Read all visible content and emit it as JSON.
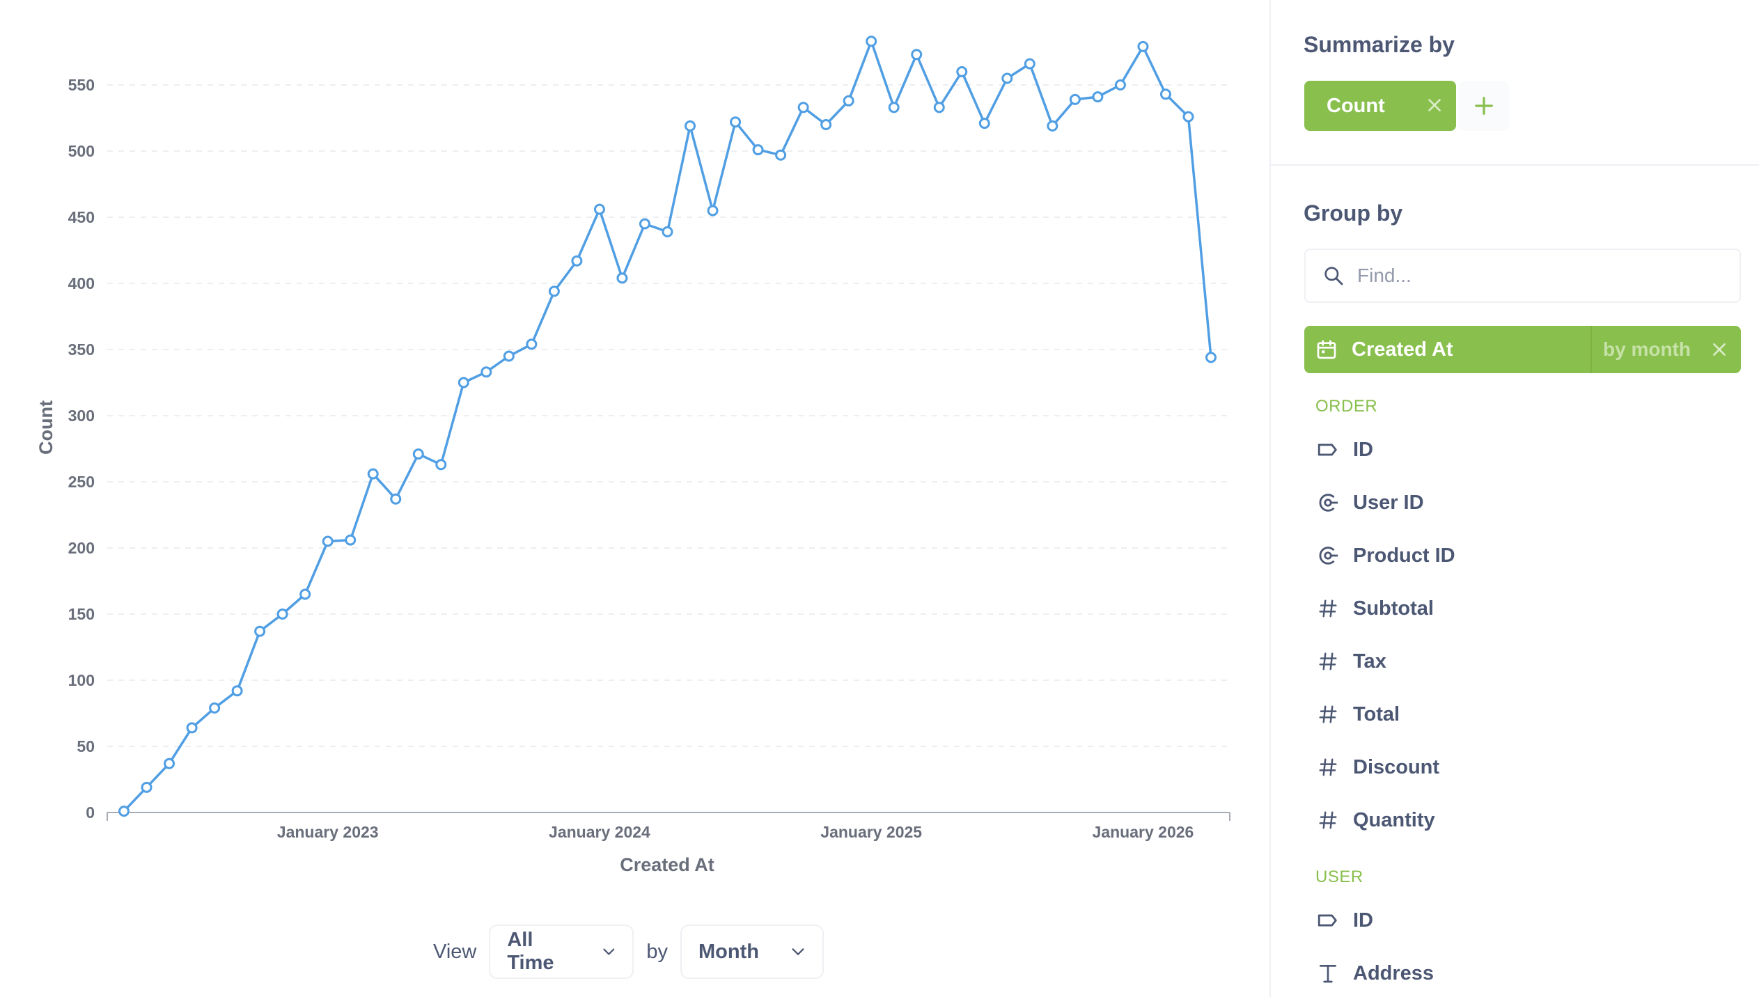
{
  "chart_data": {
    "type": "line",
    "xlabel": "Created At",
    "ylabel": "Count",
    "ylim": [
      0,
      580
    ],
    "yticks": [
      0,
      50,
      100,
      150,
      200,
      250,
      300,
      350,
      400,
      450,
      500,
      550
    ],
    "x_tick_labels": [
      "January 2023",
      "January 2024",
      "January 2025",
      "January 2026"
    ],
    "x_tick_dates": [
      "2023-01",
      "2024-01",
      "2025-01",
      "2026-01"
    ],
    "grid": true,
    "color": "#509ee3",
    "series": [
      {
        "x": [
          "2022-04",
          "2022-05",
          "2022-06",
          "2022-07",
          "2022-08",
          "2022-09",
          "2022-10",
          "2022-11",
          "2022-12",
          "2023-01",
          "2023-02",
          "2023-03",
          "2023-04",
          "2023-05",
          "2023-06",
          "2023-07",
          "2023-08",
          "2023-09",
          "2023-10",
          "2023-11",
          "2023-12",
          "2024-01",
          "2024-02",
          "2024-03",
          "2024-04",
          "2024-05",
          "2024-06",
          "2024-07",
          "2024-08",
          "2024-09",
          "2024-10",
          "2024-11",
          "2024-12",
          "2025-01",
          "2025-02",
          "2025-03",
          "2025-04",
          "2025-05",
          "2025-06",
          "2025-07",
          "2025-08",
          "2025-09",
          "2025-10",
          "2025-11",
          "2025-12",
          "2026-01",
          "2026-02",
          "2026-03",
          "2026-04"
        ],
        "values": [
          1,
          19,
          37,
          64,
          79,
          92,
          137,
          150,
          165,
          205,
          206,
          256,
          237,
          271,
          263,
          325,
          333,
          345,
          354,
          394,
          417,
          456,
          404,
          445,
          439,
          519,
          455,
          522,
          501,
          497,
          533,
          520,
          538,
          583,
          533,
          573,
          533,
          560,
          521,
          555,
          566,
          519,
          539,
          541,
          550,
          579,
          543,
          526,
          344
        ]
      }
    ]
  },
  "view": {
    "view_label": "View",
    "time_value": "All Time",
    "by_label": "by",
    "unit_value": "Month"
  },
  "sidebar": {
    "summarize_title": "Summarize by",
    "metric": "Count",
    "group_title": "Group by",
    "find_placeholder": "Find...",
    "selected": {
      "label": "Created At",
      "bucket": "by month"
    },
    "order_header": "ORDER",
    "order_fields": [
      {
        "label": "ID",
        "icon": "tag-icon"
      },
      {
        "label": "User ID",
        "icon": "connection-icon"
      },
      {
        "label": "Product ID",
        "icon": "connection-icon"
      },
      {
        "label": "Subtotal",
        "icon": "number-icon"
      },
      {
        "label": "Tax",
        "icon": "number-icon"
      },
      {
        "label": "Total",
        "icon": "number-icon"
      },
      {
        "label": "Discount",
        "icon": "number-icon"
      },
      {
        "label": "Quantity",
        "icon": "number-icon"
      }
    ],
    "user_header": "USER",
    "user_fields": [
      {
        "label": "ID",
        "icon": "tag-icon"
      },
      {
        "label": "Address",
        "icon": "text-icon"
      }
    ],
    "accent": "#88bf4d",
    "text_color": "#4c5773"
  }
}
